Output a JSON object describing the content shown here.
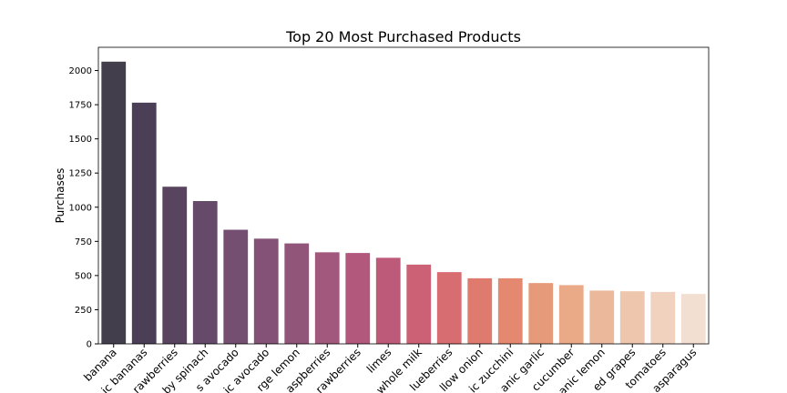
{
  "chart_data": {
    "type": "bar",
    "title": "Top 20 Most Purchased Products",
    "y_label": "Purchases",
    "categories": [
      "banana",
      "ic bananas",
      "rawberries",
      "by spinach",
      "s avocado",
      "ic avocado",
      "rge lemon",
      "aspberries",
      "rawberries",
      "limes",
      "whole milk",
      "lueberries",
      "llow onion",
      "ic zucchini",
      "anic garlic",
      "cucumber",
      "anic lemon",
      "ed grapes",
      "tomatoes",
      "asparagus"
    ],
    "values": [
      2065,
      1765,
      1150,
      1045,
      835,
      770,
      735,
      670,
      665,
      630,
      580,
      525,
      480,
      480,
      445,
      430,
      390,
      385,
      380,
      365
    ],
    "colors": [
      "#423e4c",
      "#4a3f56",
      "#58445f",
      "#654a6a",
      "#744f71",
      "#845276",
      "#92557a",
      "#a2577c",
      "#b1587c",
      "#be5a79",
      "#cc6075",
      "#d76c71",
      "#df7a6e",
      "#e4896f",
      "#e79a79",
      "#eaaa88",
      "#ecb89c",
      "#eec6ae",
      "#f0d2bf",
      "#f2dfd1"
    ],
    "ylim": [
      0,
      2170
    ],
    "yticks": [
      0,
      250,
      500,
      750,
      1000,
      1250,
      1500,
      1750,
      2000
    ],
    "grid": false
  }
}
